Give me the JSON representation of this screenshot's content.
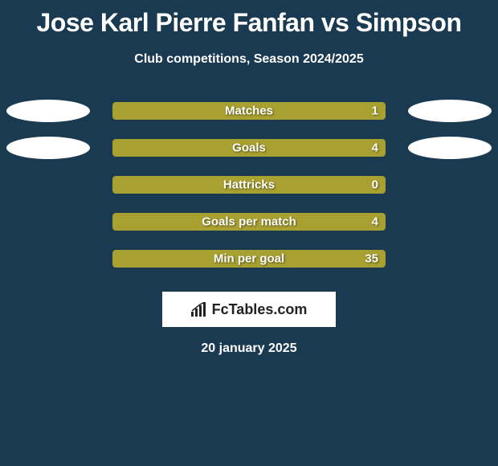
{
  "title": "Jose Karl Pierre Fanfan vs Simpson",
  "subtitle": "Club competitions, Season 2024/2025",
  "date": "20 january 2025",
  "logo_text": "FcTables.com",
  "background_color": "#1a3a52",
  "text_color": "#ffffff",
  "bar_color": "#a8a030",
  "bar_border_color": "#a8a030",
  "avatar_color": "#ffffff",
  "title_fontsize": 32,
  "subtitle_fontsize": 16,
  "label_fontsize": 15,
  "logo_box_bg": "#ffffff",
  "logo_text_color": "#222222",
  "rows": [
    {
      "label": "Matches",
      "left_value": "",
      "right_value": "1",
      "fill_pct": 100,
      "show_left_avatar": true,
      "show_right_avatar": true
    },
    {
      "label": "Goals",
      "left_value": "",
      "right_value": "4",
      "fill_pct": 100,
      "show_left_avatar": true,
      "show_right_avatar": true
    },
    {
      "label": "Hattricks",
      "left_value": "",
      "right_value": "0",
      "fill_pct": 100,
      "show_left_avatar": false,
      "show_right_avatar": false
    },
    {
      "label": "Goals per match",
      "left_value": "",
      "right_value": "4",
      "fill_pct": 100,
      "show_left_avatar": false,
      "show_right_avatar": false
    },
    {
      "label": "Min per goal",
      "left_value": "",
      "right_value": "35",
      "fill_pct": 100,
      "show_left_avatar": false,
      "show_right_avatar": false
    }
  ]
}
